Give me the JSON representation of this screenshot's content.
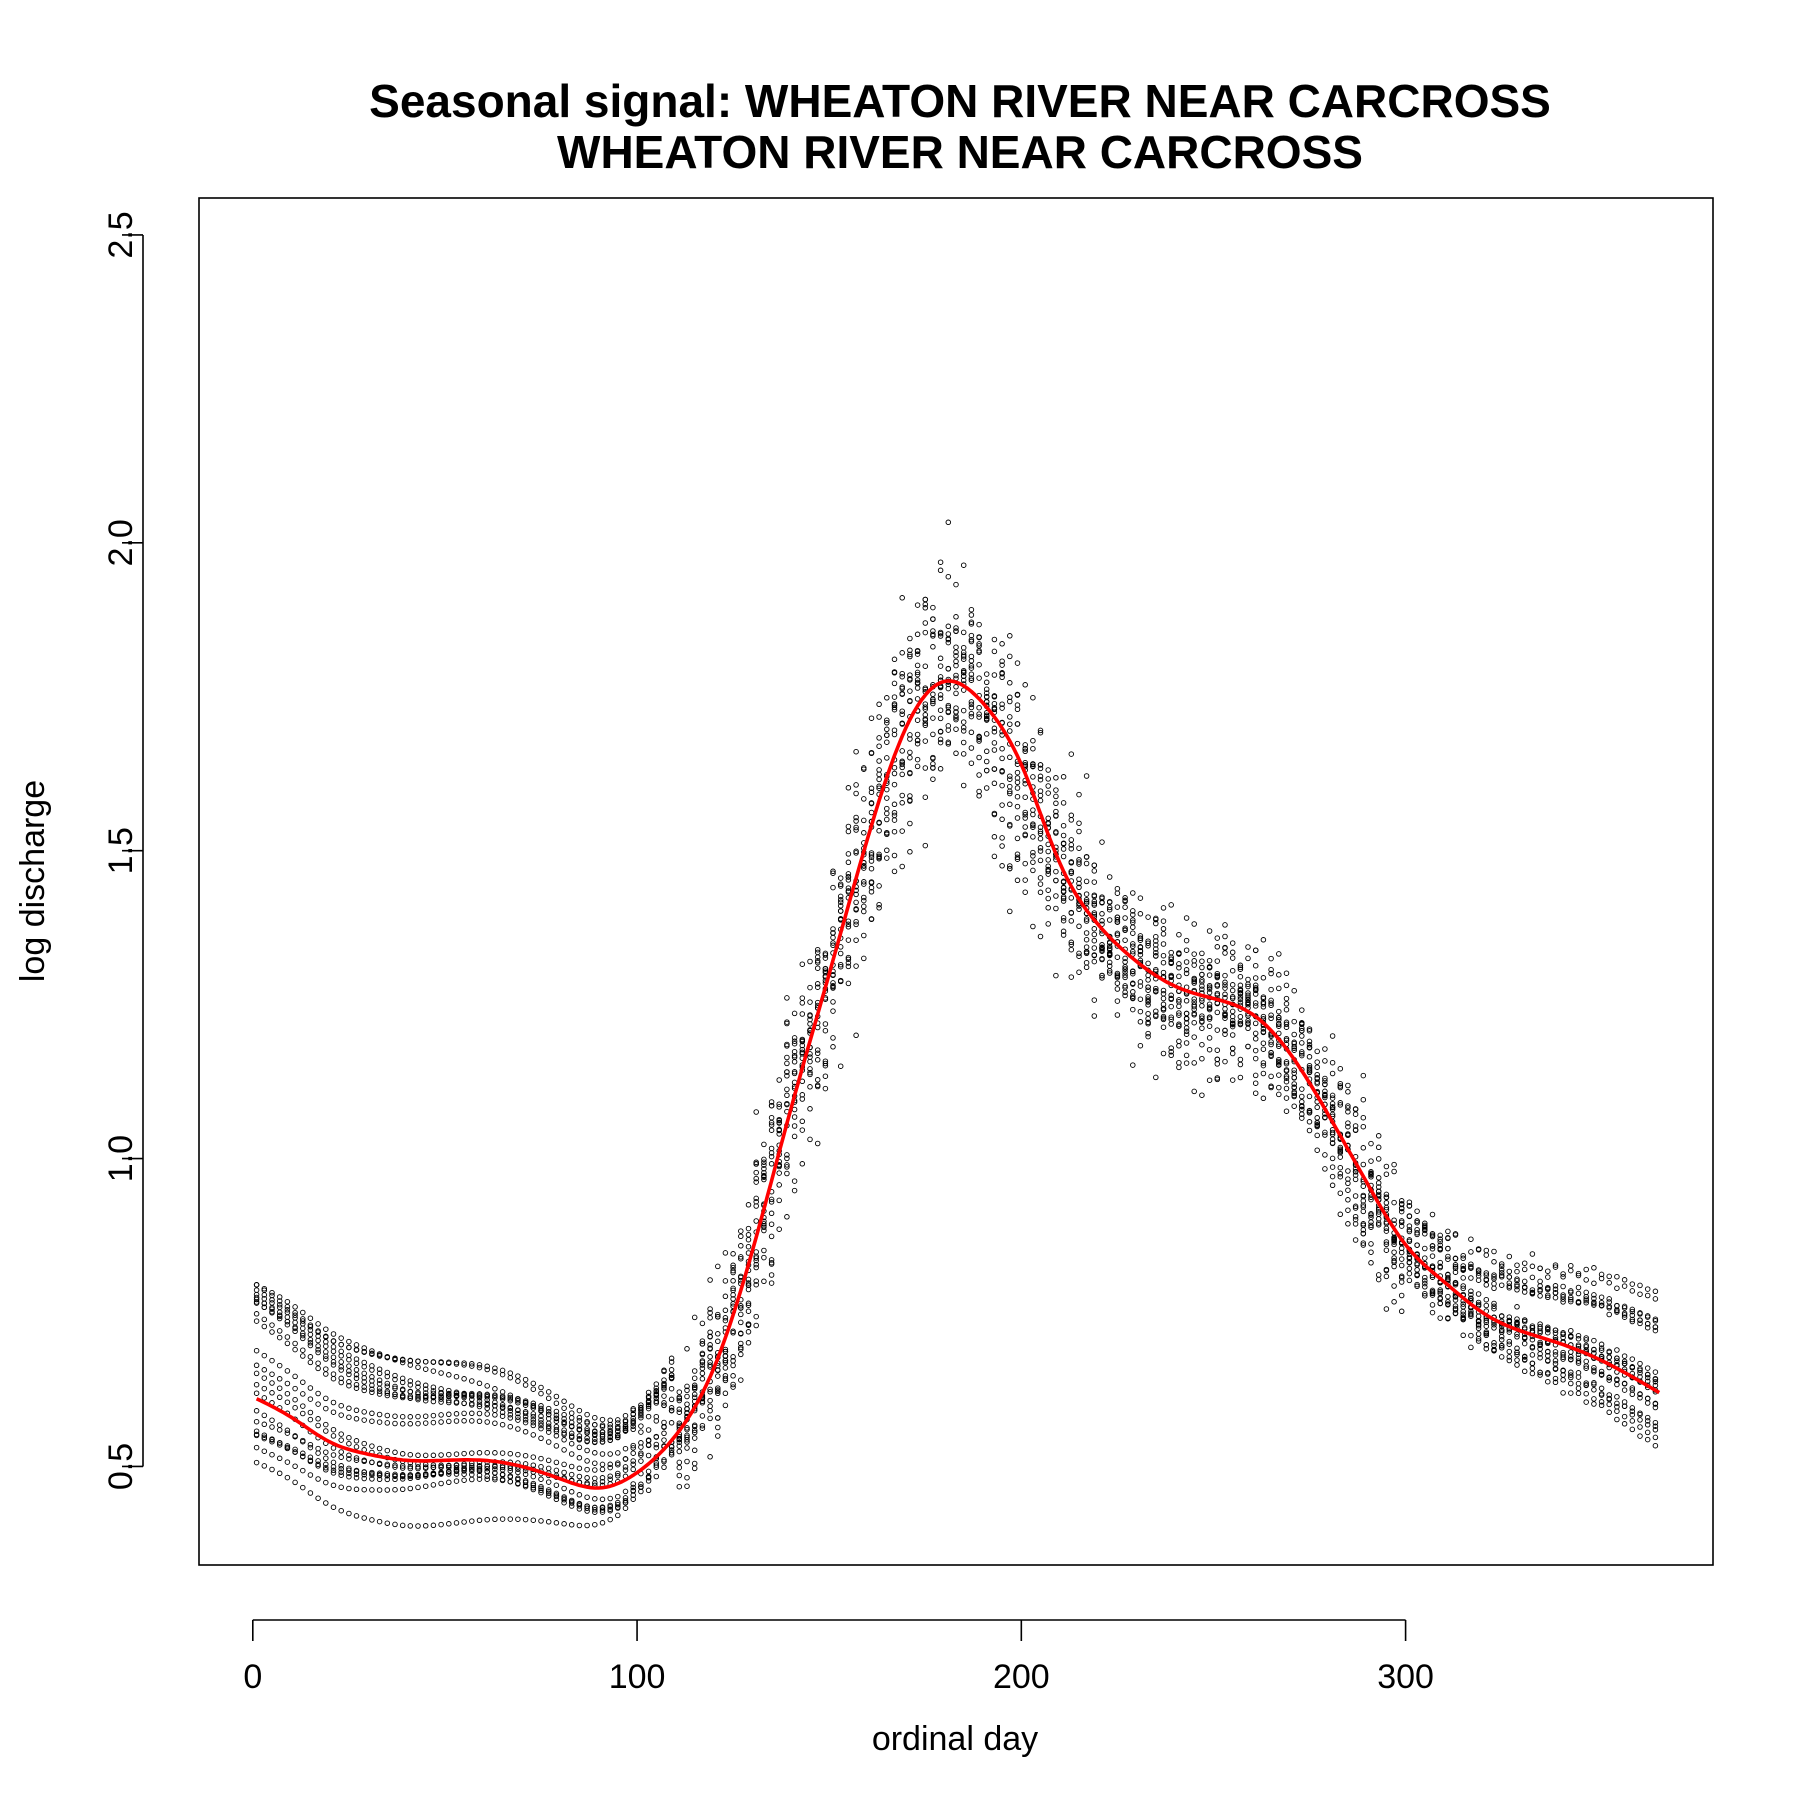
{
  "chart_data": {
    "type": "scatter",
    "title_line1": "Seasonal signal: WHEATON RIVER NEAR CARCROSS",
    "title_line2": "WHEATON RIVER NEAR CARCROSS",
    "xlabel": "ordinal day",
    "ylabel": "log discharge",
    "xlim": [
      -14,
      380
    ],
    "ylim": [
      0.34,
      2.56
    ],
    "x_ticks": [
      0,
      100,
      200,
      300
    ],
    "y_ticks": [
      0.5,
      1.0,
      1.5,
      2.0,
      2.5
    ],
    "x_tick_labels": [
      "0",
      "100",
      "200",
      "300"
    ],
    "y_tick_labels": [
      "0.5",
      "1.0",
      "1.5",
      "2.0",
      "2.5"
    ],
    "grid": false,
    "legend": "none",
    "series": [
      {
        "role": "observations",
        "marker": "open-circle",
        "color": "#000000",
        "n_years": 22,
        "points_per_year": 366
      },
      {
        "role": "seasonal-fit",
        "style": "line",
        "color": "#ff0000",
        "x": [
          1,
          10,
          20,
          30,
          40,
          50,
          60,
          70,
          80,
          90,
          100,
          110,
          120,
          130,
          140,
          150,
          160,
          170,
          180,
          190,
          200,
          210,
          220,
          230,
          240,
          250,
          260,
          270,
          280,
          290,
          300,
          310,
          320,
          330,
          340,
          350,
          366
        ],
        "y": [
          0.61,
          0.58,
          0.54,
          0.52,
          0.51,
          0.51,
          0.51,
          0.5,
          0.48,
          0.465,
          0.49,
          0.55,
          0.66,
          0.85,
          1.08,
          1.3,
          1.52,
          1.7,
          1.775,
          1.74,
          1.64,
          1.48,
          1.38,
          1.32,
          1.28,
          1.26,
          1.235,
          1.17,
          1.07,
          0.96,
          0.86,
          0.8,
          0.75,
          0.72,
          0.7,
          0.675,
          0.62
        ]
      }
    ]
  }
}
